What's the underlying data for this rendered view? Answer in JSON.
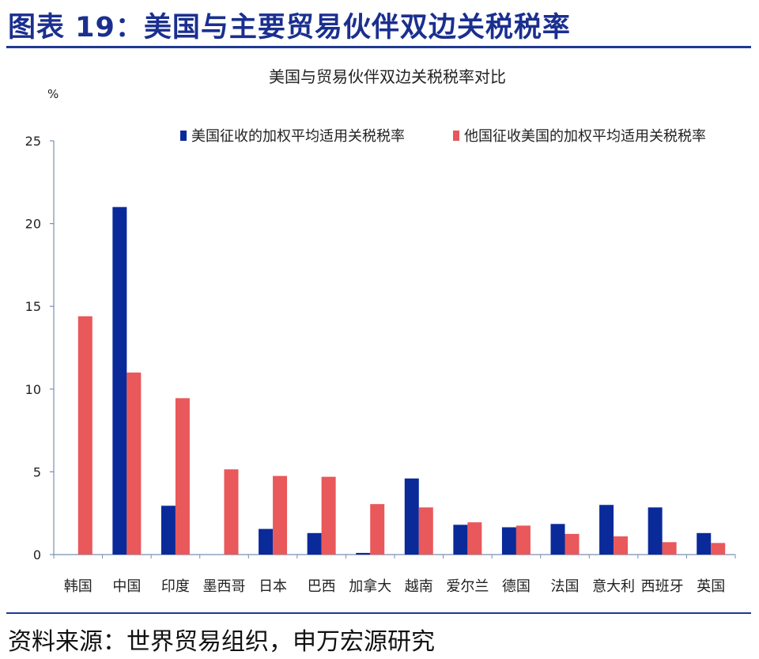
{
  "figure": {
    "title": "图表 19：美国与主要贸易伙伴双边关税税率",
    "source": "资料来源：世界贸易组织，申万宏源研究"
  },
  "colors": {
    "us_bar": "#0a2a9a",
    "other_bar": "#e9585a",
    "axis": "#7a8fb0",
    "title_blue": "#1a2f8f"
  },
  "chart_data": {
    "type": "bar",
    "title": "美国与贸易伙伴双边关税税率对比",
    "ylabel": "%",
    "ylim": [
      0,
      25
    ],
    "yticks": [
      "0",
      "5",
      "10",
      "15",
      "20",
      "25"
    ],
    "legend_position": "top",
    "categories": [
      "韩国",
      "中国",
      "印度",
      "墨西哥",
      "日本",
      "巴西",
      "加拿大",
      "越南",
      "爱尔兰",
      "德国",
      "法国",
      "意大利",
      "西班牙",
      "英国"
    ],
    "series": [
      {
        "name": "美国征收的加权平均适用关税税率",
        "values": [
          0,
          21,
          2.95,
          0,
          1.55,
          1.3,
          0.1,
          4.6,
          1.8,
          1.65,
          1.85,
          3.0,
          2.85,
          1.3
        ]
      },
      {
        "name": "他国征收美国的加权平均适用关税税率",
        "values": [
          14.4,
          11.0,
          9.45,
          5.15,
          4.75,
          4.7,
          3.05,
          2.85,
          1.95,
          1.75,
          1.25,
          1.1,
          0.75,
          0.7
        ]
      }
    ]
  }
}
